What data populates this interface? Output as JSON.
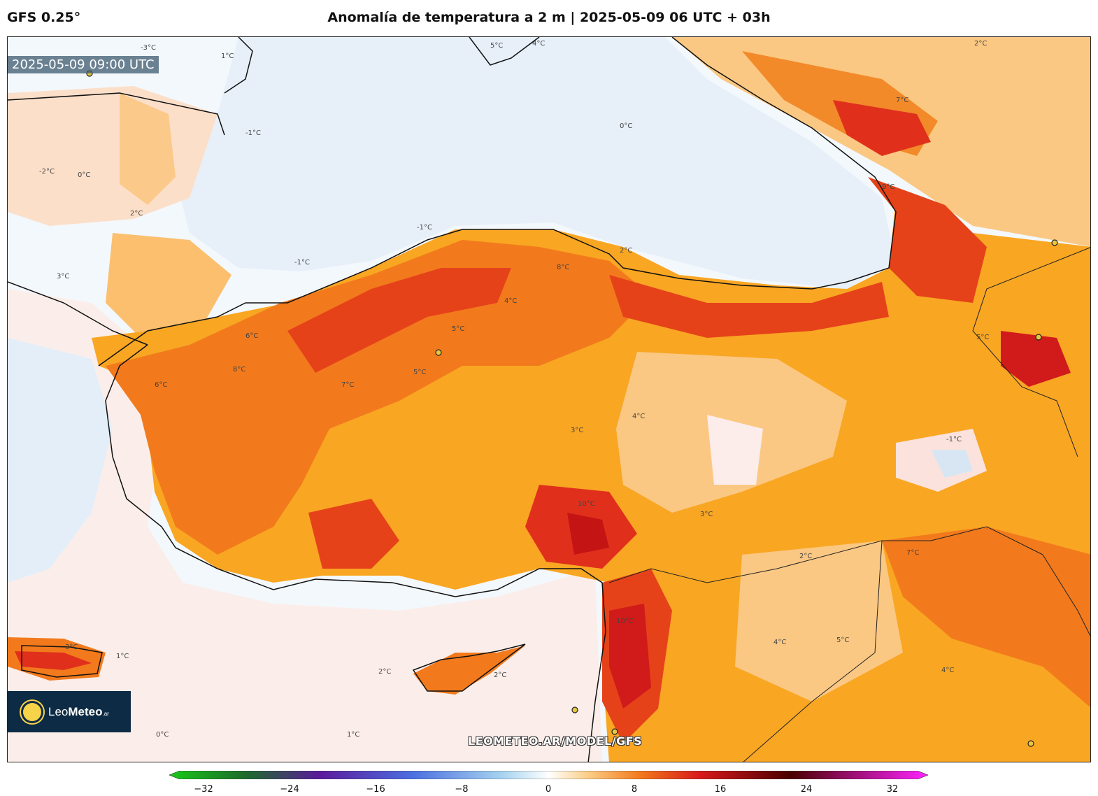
{
  "header": {
    "model": "GFS 0.25°",
    "title": "Anomalía de temperatura a 2 m | 2025-05-09 06 UTC + 03h"
  },
  "valid_time": "2025-05-09 09:00 UTC",
  "watermark": "LEOMETEO.AR/MODEL/GFS",
  "logo": {
    "name_light": "Leo",
    "name_bold": "Meteo",
    "suffix": ".ar",
    "icon": "sun-icon"
  },
  "colorbar": {
    "min": -32,
    "max": 32,
    "ticks": [
      "−32",
      "−24",
      "−16",
      "−8",
      "0",
      "8",
      "16",
      "24",
      "32"
    ],
    "colors": {
      "neg_far": "#19c919",
      "neg_mid1": "#1d6b2b",
      "neg_mid2": "#5b1b9c",
      "neg_mid3": "#4b6fe0",
      "neg_near": "#a8d4f0",
      "zero": "#ffffff",
      "pos_near": "#fbd08a",
      "pos_mid1": "#f27a1c",
      "pos_mid2": "#d7191c",
      "pos_mid3": "#4a0000",
      "pos_far": "#ff22ff"
    }
  },
  "contour_labels": [
    "-3°C",
    "1°C",
    "0°C",
    "2°C",
    "5°C",
    "4°C",
    "0°C",
    "-1°C",
    "-2°C",
    "2°C",
    "-1°C",
    "3°C",
    "-1°C",
    "2°C",
    "9°C",
    "7°C",
    "8°C",
    "6°C",
    "5°C",
    "4°C",
    "7°C",
    "5°C",
    "6°C",
    "8°C",
    "3°C",
    "10°C",
    "4°C",
    "5°C",
    "2°C",
    "3°C",
    "7°C",
    "10°C",
    "4°C",
    "2°C",
    "3°C",
    "1°C",
    "0°C",
    "-1°C",
    "1°C",
    "2°C",
    "4°C",
    "5°C"
  ],
  "map_colors": {
    "sea": "#f2f7fc",
    "sea_cool": "#dceaf6",
    "land_neutral": "#fce9e2",
    "anom_2": "#fbd49a",
    "anom_4": "#f9a623",
    "anom_6": "#f27a1c",
    "anom_8": "#e93b1c",
    "anom_10": "#d11a1a",
    "coast": "#111111"
  }
}
